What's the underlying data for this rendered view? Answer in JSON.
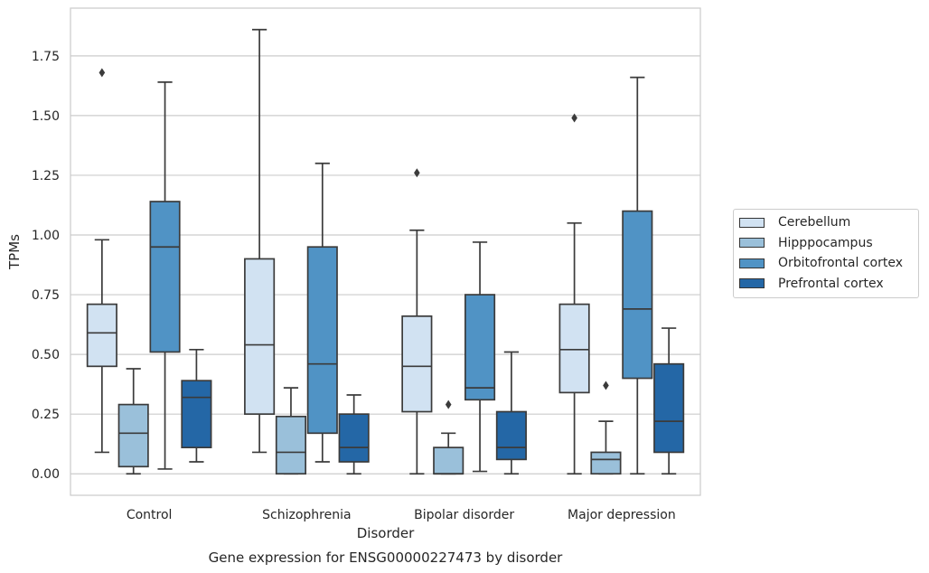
{
  "chart_data": {
    "type": "box",
    "title": "Gene expression for ENSG00000227473 by disorder",
    "xlabel": "Disorder",
    "ylabel": "TPMs",
    "ylim": [
      -0.09,
      1.95
    ],
    "yticks": [
      "0.00",
      "0.25",
      "0.50",
      "0.75",
      "1.00",
      "1.25",
      "1.50",
      "1.75"
    ],
    "ytick_values": [
      0,
      0.25,
      0.5,
      0.75,
      1.0,
      1.25,
      1.5,
      1.75
    ],
    "grid": "horizontal",
    "legend_position": "right",
    "categories": [
      "Control",
      "Schizophrenia",
      "Bipolar disorder",
      "Major depression"
    ],
    "series": [
      {
        "name": "Cerebellum",
        "color": "#d1e2f2",
        "boxes": [
          {
            "whislo": 0.09,
            "q1": 0.45,
            "med": 0.59,
            "q3": 0.71,
            "whishi": 0.98,
            "fliers": [
              1.68
            ]
          },
          {
            "whislo": 0.09,
            "q1": 0.25,
            "med": 0.54,
            "q3": 0.9,
            "whishi": 1.86,
            "fliers": []
          },
          {
            "whislo": 0.0,
            "q1": 0.26,
            "med": 0.45,
            "q3": 0.66,
            "whishi": 1.02,
            "fliers": [
              1.26
            ]
          },
          {
            "whislo": 0.0,
            "q1": 0.34,
            "med": 0.52,
            "q3": 0.71,
            "whishi": 1.05,
            "fliers": [
              1.49
            ]
          }
        ]
      },
      {
        "name": "Hipppocampus",
        "color": "#9ac0da",
        "boxes": [
          {
            "whislo": 0.0,
            "q1": 0.03,
            "med": 0.17,
            "q3": 0.29,
            "whishi": 0.44,
            "fliers": []
          },
          {
            "whislo": 0.0,
            "q1": 0.0,
            "med": 0.09,
            "q3": 0.24,
            "whishi": 0.36,
            "fliers": []
          },
          {
            "whislo": 0.0,
            "q1": 0.0,
            "med": 0.0,
            "q3": 0.11,
            "whishi": 0.17,
            "fliers": [
              0.29
            ]
          },
          {
            "whislo": 0.0,
            "q1": 0.0,
            "med": 0.06,
            "q3": 0.09,
            "whishi": 0.22,
            "fliers": [
              0.37
            ]
          }
        ]
      },
      {
        "name": "Orbitofrontal cortex",
        "color": "#5093c5",
        "boxes": [
          {
            "whislo": 0.02,
            "q1": 0.51,
            "med": 0.95,
            "q3": 1.14,
            "whishi": 1.64,
            "fliers": []
          },
          {
            "whislo": 0.05,
            "q1": 0.17,
            "med": 0.46,
            "q3": 0.95,
            "whishi": 1.3,
            "fliers": []
          },
          {
            "whislo": 0.01,
            "q1": 0.31,
            "med": 0.36,
            "q3": 0.75,
            "whishi": 0.97,
            "fliers": []
          },
          {
            "whislo": 0.0,
            "q1": 0.4,
            "med": 0.69,
            "q3": 1.1,
            "whishi": 1.66,
            "fliers": []
          }
        ]
      },
      {
        "name": "Prefrontal cortex",
        "color": "#2467a6",
        "boxes": [
          {
            "whislo": 0.05,
            "q1": 0.11,
            "med": 0.32,
            "q3": 0.39,
            "whishi": 0.52,
            "fliers": []
          },
          {
            "whislo": 0.0,
            "q1": 0.05,
            "med": 0.11,
            "q3": 0.25,
            "whishi": 0.33,
            "fliers": []
          },
          {
            "whislo": 0.0,
            "q1": 0.06,
            "med": 0.11,
            "q3": 0.26,
            "whishi": 0.51,
            "fliers": []
          },
          {
            "whislo": 0.0,
            "q1": 0.09,
            "med": 0.22,
            "q3": 0.46,
            "whishi": 0.61,
            "fliers": []
          }
        ]
      }
    ]
  }
}
